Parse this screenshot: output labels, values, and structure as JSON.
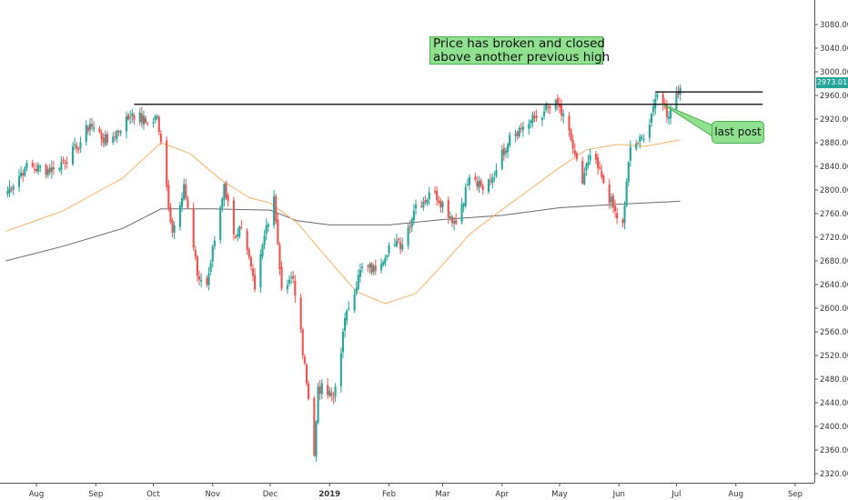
{
  "chart_data": {
    "type": "candlestick",
    "title": "",
    "xlabel": "",
    "ylabel": "",
    "ylim": [
      2300,
      3110
    ],
    "y_ticks": [
      2320,
      2360,
      2400,
      2440,
      2480,
      2520,
      2560,
      2600,
      2640,
      2680,
      2720,
      2760,
      2800,
      2840,
      2880,
      2920,
      2960,
      3000,
      3040,
      3080
    ],
    "y_tick_labels": [
      "2320.00",
      "2360.00",
      "2400.00",
      "2440.00",
      "2480.00",
      "2520.00",
      "2560.00",
      "2600.00",
      "2640.00",
      "2680.00",
      "2720.00",
      "2760.00",
      "2800.00",
      "2840.00",
      "2880.00",
      "2920.00",
      "2960.00",
      "3000.00",
      "3040.00",
      "3080.00"
    ],
    "x_ticks": [
      {
        "label": "Aug",
        "date": "2018-08-01"
      },
      {
        "label": "Sep",
        "date": "2018-09-01"
      },
      {
        "label": "Oct",
        "date": "2018-10-01"
      },
      {
        "label": "Nov",
        "date": "2018-11-01"
      },
      {
        "label": "Dec",
        "date": "2018-12-01"
      },
      {
        "label": "2019",
        "date": "2019-01-01",
        "bold": true
      },
      {
        "label": "Feb",
        "date": "2019-02-01"
      },
      {
        "label": "Mar",
        "date": "2019-03-01"
      },
      {
        "label": "Apr",
        "date": "2019-04-01"
      },
      {
        "label": "May",
        "date": "2019-05-01"
      },
      {
        "label": "Jun",
        "date": "2019-06-01"
      },
      {
        "label": "Jul",
        "date": "2019-07-01"
      },
      {
        "label": "Aug",
        "date": "2019-08-01"
      },
      {
        "label": "Sep",
        "date": "2019-09-01"
      }
    ],
    "last_price": "2973.01",
    "colors": {
      "up": "#26a69a",
      "down": "#ef5350",
      "ma50": "#f7b267",
      "ma200": "#6b6b6b",
      "level": "#000000",
      "annotation": "#8fe08f"
    },
    "price_path": [
      [
        "2018-07-16",
        2795
      ],
      [
        "2018-07-26",
        2838
      ],
      [
        "2018-08-10",
        2835
      ],
      [
        "2018-08-22",
        2870
      ],
      [
        "2018-08-29",
        2912
      ],
      [
        "2018-09-07",
        2880
      ],
      [
        "2018-09-20",
        2930
      ],
      [
        "2018-09-28",
        2913
      ],
      [
        "2018-10-03",
        2925
      ],
      [
        "2018-10-11",
        2728
      ],
      [
        "2018-10-17",
        2810
      ],
      [
        "2018-10-24",
        2655
      ],
      [
        "2018-10-29",
        2640
      ],
      [
        "2018-11-07",
        2810
      ],
      [
        "2018-11-12",
        2725
      ],
      [
        "2018-11-16",
        2735
      ],
      [
        "2018-11-23",
        2632
      ],
      [
        "2018-11-29",
        2740
      ],
      [
        "2018-12-03",
        2790
      ],
      [
        "2018-12-07",
        2633
      ],
      [
        "2018-12-13",
        2650
      ],
      [
        "2018-12-19",
        2507
      ],
      [
        "2018-12-24",
        2351
      ],
      [
        "2018-12-26",
        2467
      ],
      [
        "2019-01-03",
        2447
      ],
      [
        "2019-01-10",
        2596
      ],
      [
        "2019-01-18",
        2670
      ],
      [
        "2019-01-25",
        2664
      ],
      [
        "2019-02-01",
        2706
      ],
      [
        "2019-02-08",
        2708
      ],
      [
        "2019-02-15",
        2775
      ],
      [
        "2019-02-25",
        2796
      ],
      [
        "2019-03-08",
        2743
      ],
      [
        "2019-03-15",
        2822
      ],
      [
        "2019-03-22",
        2800
      ],
      [
        "2019-03-29",
        2834
      ],
      [
        "2019-04-05",
        2893
      ],
      [
        "2019-04-12",
        2907
      ],
      [
        "2019-04-23",
        2933
      ],
      [
        "2019-04-30",
        2945
      ],
      [
        "2019-05-07",
        2884
      ],
      [
        "2019-05-13",
        2811
      ],
      [
        "2019-05-17",
        2859
      ],
      [
        "2019-05-23",
        2822
      ],
      [
        "2019-05-31",
        2752
      ],
      [
        "2019-06-03",
        2744
      ],
      [
        "2019-06-07",
        2873
      ],
      [
        "2019-06-14",
        2886
      ],
      [
        "2019-06-20",
        2954
      ],
      [
        "2019-06-24",
        2945
      ],
      [
        "2019-06-27",
        2924
      ],
      [
        "2019-07-01",
        2964
      ],
      [
        "2019-07-03",
        2973
      ]
    ],
    "ma50_path": [
      [
        "2018-07-16",
        2730
      ],
      [
        "2018-08-15",
        2765
      ],
      [
        "2018-09-15",
        2820
      ],
      [
        "2018-10-05",
        2880
      ],
      [
        "2018-10-20",
        2862
      ],
      [
        "2018-11-05",
        2818
      ],
      [
        "2018-11-20",
        2787
      ],
      [
        "2018-12-01",
        2778
      ],
      [
        "2018-12-15",
        2745
      ],
      [
        "2019-01-01",
        2680
      ],
      [
        "2019-01-15",
        2628
      ],
      [
        "2019-01-30",
        2608
      ],
      [
        "2019-02-15",
        2625
      ],
      [
        "2019-02-28",
        2670
      ],
      [
        "2019-03-15",
        2725
      ],
      [
        "2019-03-30",
        2762
      ],
      [
        "2019-04-15",
        2800
      ],
      [
        "2019-05-01",
        2838
      ],
      [
        "2019-05-15",
        2868
      ],
      [
        "2019-05-31",
        2877
      ],
      [
        "2019-06-15",
        2874
      ],
      [
        "2019-07-03",
        2885
      ]
    ],
    "ma200_path": [
      [
        "2018-07-16",
        2680
      ],
      [
        "2018-08-15",
        2705
      ],
      [
        "2018-09-15",
        2735
      ],
      [
        "2018-10-05",
        2768
      ],
      [
        "2018-11-01",
        2768
      ],
      [
        "2018-12-01",
        2766
      ],
      [
        "2018-12-15",
        2748
      ],
      [
        "2019-01-01",
        2741
      ],
      [
        "2019-02-01",
        2741
      ],
      [
        "2019-03-01",
        2750
      ],
      [
        "2019-04-01",
        2757
      ],
      [
        "2019-05-01",
        2770
      ],
      [
        "2019-06-01",
        2776
      ],
      [
        "2019-07-03",
        2781
      ]
    ],
    "levels": [
      {
        "price": 2945,
        "from": "2018-09-21",
        "to": "2019-08-15"
      },
      {
        "price": 2966,
        "from": "2019-06-20",
        "to": "2019-08-15"
      }
    ],
    "annotations": {
      "headline_line1": "Price has broken and closed",
      "headline_line2": "above another previous high",
      "callout": "last post"
    }
  }
}
